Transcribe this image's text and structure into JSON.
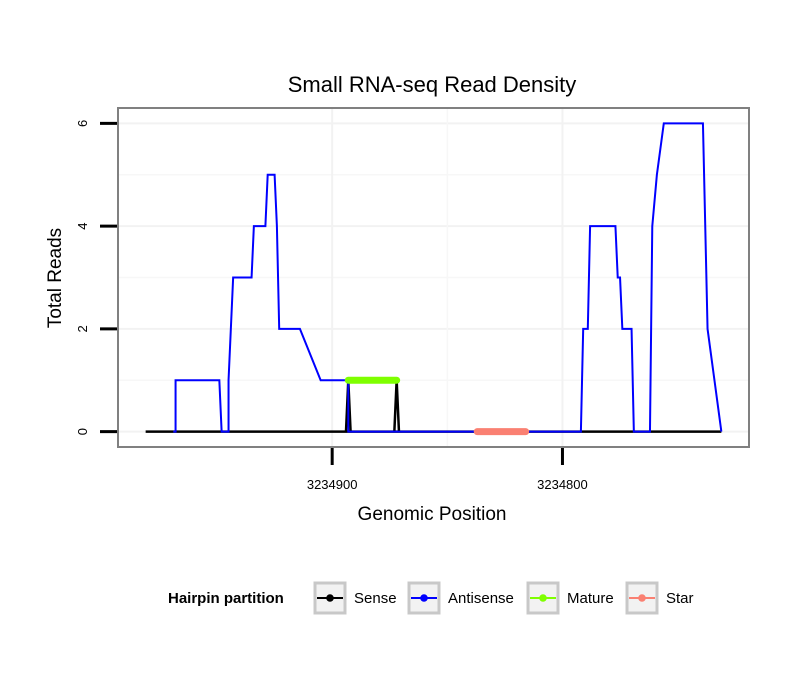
{
  "chart_data": {
    "type": "line",
    "title": "Small RNA-seq Read Density",
    "xlabel": "Genomic Position",
    "ylabel": "Total Reads",
    "x_reversed": true,
    "xlim": [
      3234993,
      3234719
    ],
    "ylim": [
      -0.3,
      6.3
    ],
    "x_ticks": [
      3234900,
      3234800
    ],
    "y_ticks": [
      0,
      2,
      4,
      6
    ],
    "grid": true,
    "legend": {
      "title": "Hairpin partition",
      "position": "bottom",
      "entries": [
        {
          "label": "Sense",
          "color": "#000000"
        },
        {
          "label": "Antisense",
          "color": "#0000ff"
        },
        {
          "label": "Mature",
          "color": "#7fff00"
        },
        {
          "label": "Star",
          "color": "#fa8072"
        }
      ]
    },
    "series": [
      {
        "name": "Sense",
        "color": "#000000",
        "x": [
          3234981,
          3234731
        ],
        "y": [
          0,
          0
        ]
      },
      {
        "name": "Antisense",
        "color": "#0000ff",
        "x": [
          3234969,
          3234968,
          3234968,
          3234949,
          3234948,
          3234945,
          3234945,
          3234943,
          3234942,
          3234935,
          3234934,
          3234929,
          3234928,
          3234925,
          3234924,
          3234923,
          3234914,
          3234914,
          3234905,
          3234904,
          3234893,
          3234893,
          3234872,
          3234792,
          3234791,
          3234789,
          3234788,
          3234777,
          3234776,
          3234775,
          3234774,
          3234770,
          3234769,
          3234762,
          3234761,
          3234759,
          3234756,
          3234756,
          3234739,
          3234737,
          3234731
        ],
        "y": [
          0,
          0,
          1,
          1,
          0,
          0,
          1,
          3,
          3,
          3,
          4,
          4,
          5,
          5,
          4,
          2,
          2,
          2,
          1,
          1,
          1,
          0,
          0,
          0,
          2,
          2,
          4,
          4,
          3,
          3,
          2,
          2,
          0,
          0,
          4,
          5,
          6,
          6,
          6,
          2,
          0
        ]
      },
      {
        "name": "Mature",
        "color": "#7fff00",
        "x": [
          3234893,
          3234872
        ],
        "y": [
          1,
          1
        ]
      },
      {
        "name": "Star",
        "color": "#fa8072",
        "x": [
          3234837,
          3234816
        ],
        "y": [
          0,
          0
        ]
      },
      {
        "name": "Sense",
        "color": "#000000",
        "x": [
          3234894,
          3234893,
          3234892
        ],
        "y": [
          0,
          1,
          0
        ],
        "segment": "spike-left"
      },
      {
        "name": "Sense",
        "color": "#000000",
        "x": [
          3234873,
          3234872,
          3234871
        ],
        "y": [
          0,
          1,
          0
        ],
        "segment": "spike-right"
      }
    ]
  }
}
